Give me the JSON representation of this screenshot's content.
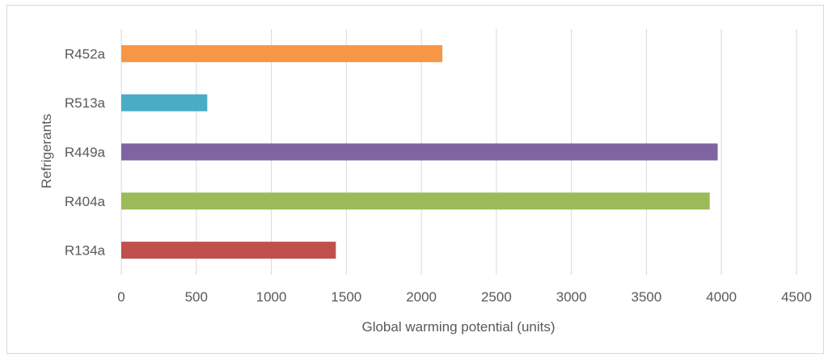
{
  "chart_data": {
    "type": "bar",
    "orientation": "horizontal",
    "categories": [
      "R452a",
      "R513a",
      "R449a",
      "R404a",
      "R134a"
    ],
    "values": [
      2140,
      573,
      3975,
      3922,
      1430
    ],
    "colors": [
      "#f79646",
      "#4bacc6",
      "#8064a2",
      "#9bbb59",
      "#c0504d"
    ],
    "xlabel": "Global warming potential (units)",
    "ylabel": "Refrigerants",
    "xlim": [
      0,
      4500
    ],
    "xticks": [
      "0",
      "500",
      "1000",
      "1500",
      "2000",
      "2500",
      "3000",
      "3500",
      "4000",
      "4500"
    ],
    "grid": "vertical",
    "legend": "none"
  }
}
